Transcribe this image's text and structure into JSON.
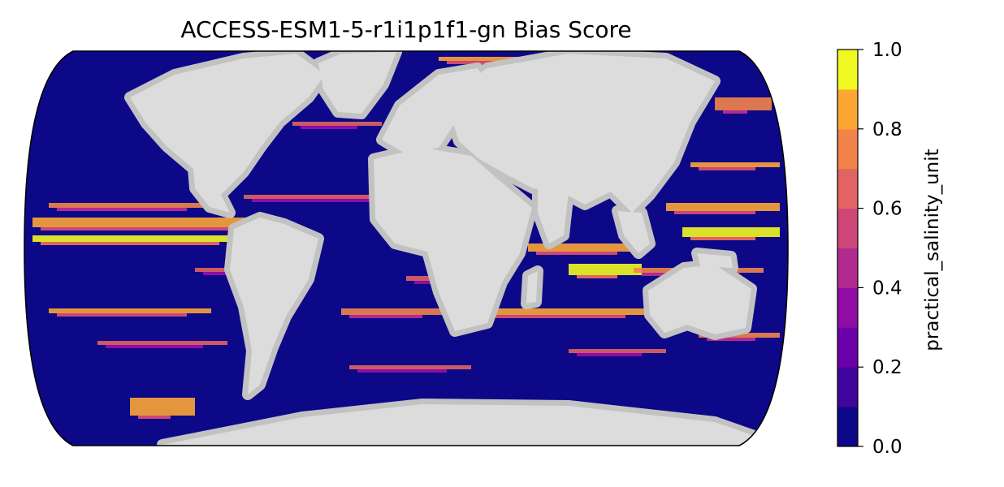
{
  "map": {
    "title": "ACCESS-ESM1-5-r1i1p1f1-gn Bias Score",
    "projection": "robinson",
    "land_color": "#dcdcdc",
    "shelf_color": "#c2c2c2",
    "ocean_base_color": "#0d0887"
  },
  "colorbar": {
    "label": "practical_salinity_unit",
    "min": 0.0,
    "max": 1.0,
    "levels": 10,
    "ticks": [
      "0.0",
      "0.2",
      "0.4",
      "0.6",
      "0.8",
      "1.0"
    ],
    "colors": [
      "#0d0887",
      "#41049d",
      "#6a00a8",
      "#8f0da4",
      "#b12a90",
      "#cc4778",
      "#e16462",
      "#f2844b",
      "#fca636",
      "#f0f921"
    ]
  }
}
